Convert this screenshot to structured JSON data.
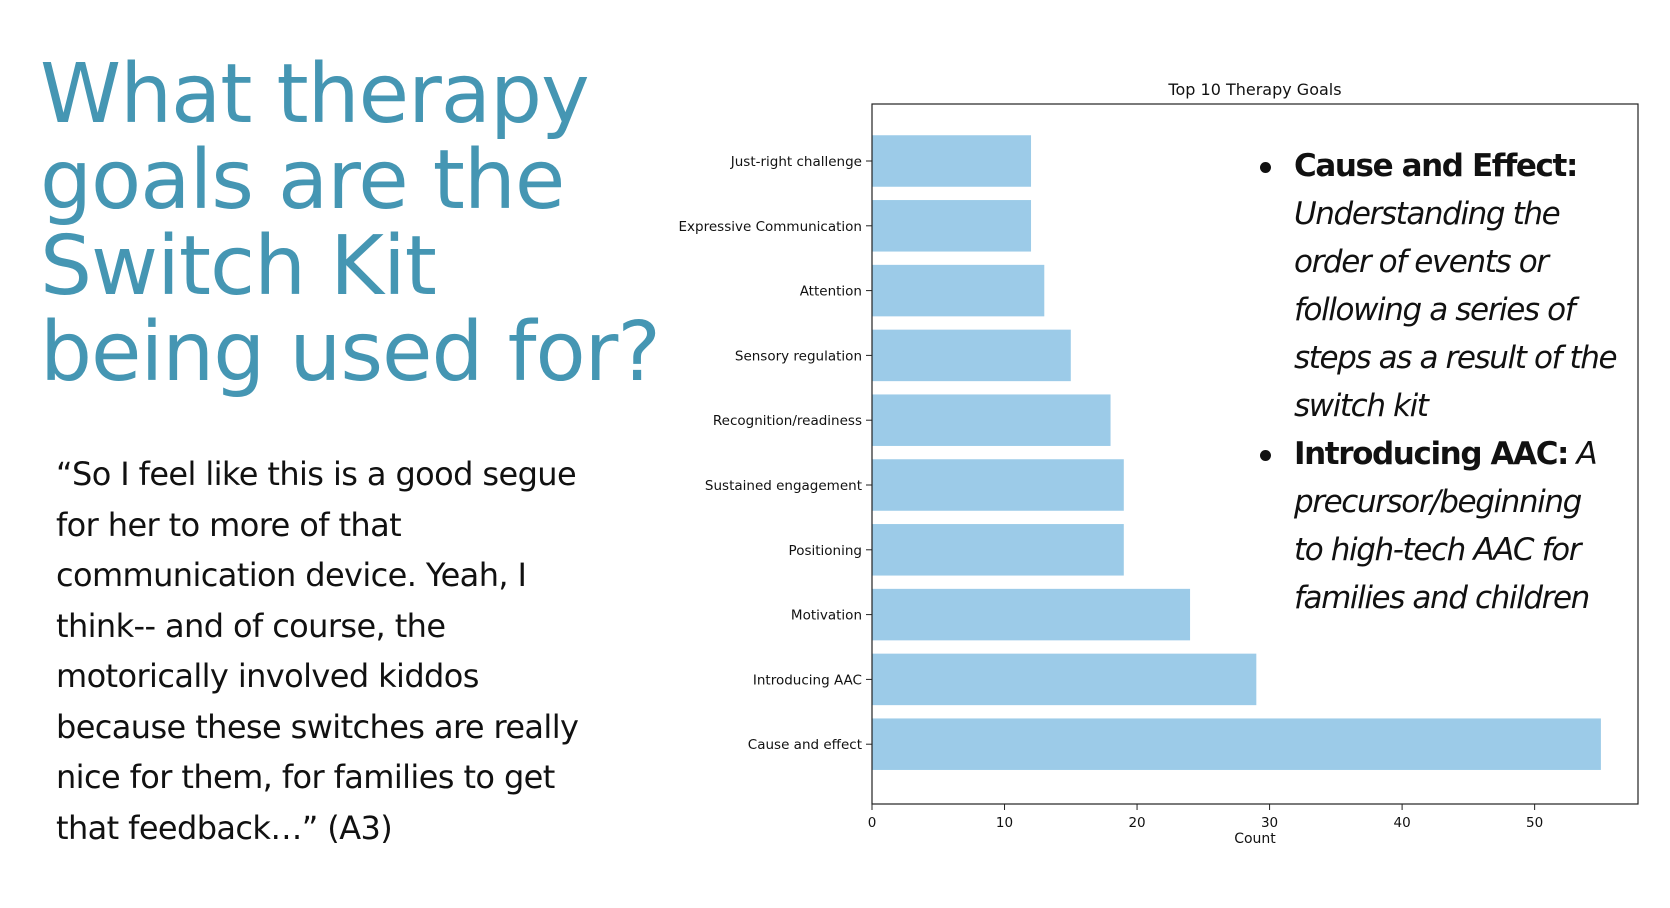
{
  "headline": [
    "What therapy",
    "goals are the",
    "Switch Kit",
    "being used for?"
  ],
  "quote": [
    "“So I feel like this is a good segue",
    "for her to more of that",
    "communication device. Yeah, I",
    "think-- and of course, the",
    "motorically involved kiddos",
    "because these switches are really",
    "nice for them, for families to get",
    "that feedback…” (A3)"
  ],
  "bullets": [
    {
      "term": "Cause and Effect:",
      "lines": [
        "Understanding the",
        "order of events or",
        "following a series of",
        "steps as a result of the",
        "switch kit"
      ]
    },
    {
      "term": "Introducing AAC:",
      "first_tail": " A",
      "lines": [
        "precursor/beginning",
        "to high-tech AAC for",
        "families and children"
      ]
    }
  ],
  "chart_data": {
    "type": "bar",
    "orientation": "horizontal",
    "title": "Top 10 Therapy Goals",
    "xlabel": "Count",
    "ylabel": "",
    "categories": [
      "Just-right challenge",
      "Expressive Communication",
      "Attention",
      "Sensory regulation",
      "Recognition/readiness",
      "Sustained engagement",
      "Positioning",
      "Motivation",
      "Introducing AAC",
      "Cause and effect"
    ],
    "values": [
      12,
      12,
      13,
      15,
      18,
      19,
      19,
      24,
      29,
      55
    ],
    "xlim": [
      0,
      57.8
    ],
    "xticks": [
      0,
      10,
      20,
      30,
      40,
      50
    ],
    "bar_color": "#9ccbe8",
    "grid": false
  }
}
